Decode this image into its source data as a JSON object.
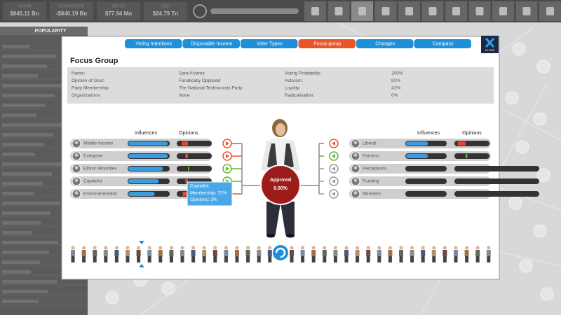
{
  "top_bar": {
    "stats": [
      {
        "label": "INCOME",
        "value": "$840.11 Bn"
      },
      {
        "label": "EXPENDITURE",
        "value": "-$840.19 Bn"
      },
      {
        "label": "DEFICIT",
        "value": "$77.94 Mn"
      },
      {
        "label": "DEBT",
        "value": "$24.79 Tn"
      }
    ]
  },
  "sidebar": {
    "title": "POPULARITY"
  },
  "tabs": [
    "Voting Intentions",
    "Disposable Income",
    "Voter Types",
    "Focus group",
    "Changes",
    "Compass"
  ],
  "close_label": "CLOSE",
  "panel": {
    "title": "Focus Group",
    "details": [
      {
        "label": "Name:",
        "value": "Sara Alvarez"
      },
      {
        "label": "Opinion of Govt:",
        "value": "Fanatically Opposed"
      },
      {
        "label": "Party Membership:",
        "value": "The National Technocrats Party"
      },
      {
        "label": "Organizations:",
        "value": "None"
      },
      {
        "label": "Voting Probability:",
        "value": "100%"
      },
      {
        "label": "Activism:",
        "value": "81%"
      },
      {
        "label": "Loyalty:",
        "value": "41%"
      },
      {
        "label": "Radicalisation:",
        "value": "0%"
      }
    ]
  },
  "columns": {
    "influences": "Influences",
    "opinions": "Opinions"
  },
  "left_groups": [
    {
      "name": "Middle Income",
      "influence": 0.97,
      "opinion": -0.35,
      "arrow_color": "#e8552a"
    },
    {
      "name": "Everyone",
      "influence": 0.97,
      "opinion": -0.15,
      "arrow_color": "#e8552a"
    },
    {
      "name": "Ethnic Minorities",
      "influence": 0.85,
      "opinion": 0.05,
      "arrow_color": "#5cb82e"
    },
    {
      "name": "Capitalist",
      "influence": 0.75,
      "opinion": -0.15,
      "arrow_color": "#5cb82e"
    },
    {
      "name": "Environmentalist",
      "influence": 0.65,
      "opinion": -0.3,
      "arrow_color": "#e8552a"
    }
  ],
  "right_groups": [
    {
      "name": "Liberal",
      "influence": 0.55,
      "opinion": -0.45,
      "arrow_color": "#e8552a"
    },
    {
      "name": "Farmers",
      "influence": 0.55,
      "opinion": 0.1,
      "arrow_color": "#5cb82e"
    },
    {
      "name": "Perceptions",
      "influence": null,
      "opinion": null,
      "arrow_color": "#9a9a9a"
    },
    {
      "name": "Funding",
      "influence": null,
      "opinion": null,
      "arrow_color": "#9a9a9a"
    },
    {
      "name": "Ministers",
      "influence": null,
      "opinion": null,
      "arrow_color": "#9a9a9a"
    }
  ],
  "approval": {
    "label": "Approval",
    "value": "0.00%"
  },
  "tooltip": {
    "title": "Capitalist",
    "lines": [
      "Membership: 72%",
      "Opinions: 2%"
    ]
  }
}
